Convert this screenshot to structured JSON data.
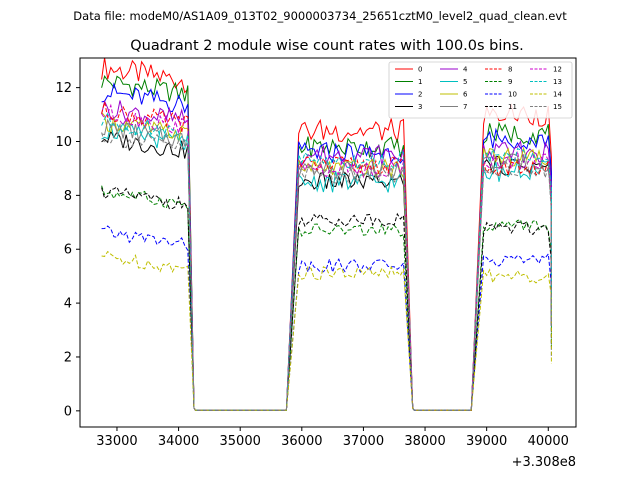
{
  "chart_data": {
    "type": "line",
    "suptitle": "Data file: modeM0/AS1A09_013T02_9000003734_25651cztM0_level2_quad_clean.evt",
    "title": "Quadrant 2 module wise count rates with 100.0s bins.",
    "xlabel": "",
    "ylabel": "",
    "x_offset_label": "+3.308e8",
    "xlim": [
      32400,
      40450
    ],
    "ylim": [
      -0.6,
      13.1
    ],
    "xticks": [
      33000,
      34000,
      35000,
      36000,
      37000,
      38000,
      39000,
      40000
    ],
    "yticks": [
      0,
      2,
      4,
      6,
      8,
      10,
      12
    ],
    "legend_loc": "upper right",
    "legend_ncol": 4,
    "segments": [
      {
        "start": 32750,
        "end": 34150,
        "drop_end": 34250,
        "gap_start": 34275,
        "gap_end": 35750,
        "rise_to": 35950
      },
      {
        "start": 35950,
        "end": 37650,
        "drop_end": 37800,
        "gap_start": 37825,
        "gap_end": 38750,
        "rise_to": 38950
      },
      {
        "start": 38950,
        "end": 40050,
        "final_end": 40050
      }
    ],
    "series": [
      {
        "name": "0",
        "color": "#ff0000",
        "dash": "solid",
        "levels": [
          12.5,
          10.4,
          11.0
        ],
        "amplitude": 0.45
      },
      {
        "name": "1",
        "color": "#008000",
        "dash": "solid",
        "levels": [
          12.0,
          9.8,
          10.3
        ],
        "amplitude": 0.4
      },
      {
        "name": "2",
        "color": "#0000ff",
        "dash": "solid",
        "levels": [
          11.6,
          9.6,
          10.1
        ],
        "amplitude": 0.4
      },
      {
        "name": "3",
        "color": "#000000",
        "dash": "solid",
        "levels": [
          9.9,
          8.5,
          9.1
        ],
        "amplitude": 0.35
      },
      {
        "name": "4",
        "color": "#9900cc",
        "dash": "solid",
        "levels": [
          11.0,
          9.5,
          9.6
        ],
        "amplitude": 0.4
      },
      {
        "name": "5",
        "color": "#00bfbf",
        "dash": "solid",
        "levels": [
          10.2,
          8.5,
          8.9
        ],
        "amplitude": 0.4
      },
      {
        "name": "6",
        "color": "#bfbf00",
        "dash": "solid",
        "levels": [
          10.5,
          9.0,
          9.4
        ],
        "amplitude": 0.35
      },
      {
        "name": "7",
        "color": "#808080",
        "dash": "solid",
        "levels": [
          10.3,
          8.9,
          9.2
        ],
        "amplitude": 0.35
      },
      {
        "name": "8",
        "color": "#ff0000",
        "dash": "dashed",
        "levels": [
          10.9,
          9.1,
          9.0
        ],
        "amplitude": 0.35
      },
      {
        "name": "9",
        "color": "#008000",
        "dash": "dashed",
        "levels": [
          7.9,
          6.7,
          6.9
        ],
        "amplitude": 0.25
      },
      {
        "name": "10",
        "color": "#0000ff",
        "dash": "dashed",
        "levels": [
          6.4,
          5.4,
          5.6
        ],
        "amplitude": 0.25
      },
      {
        "name": "11",
        "color": "#000000",
        "dash": "dashed",
        "levels": [
          7.9,
          7.1,
          6.8
        ],
        "amplitude": 0.25
      },
      {
        "name": "12",
        "color": "#cc00cc",
        "dash": "dashed",
        "levels": [
          10.8,
          9.0,
          9.3
        ],
        "amplitude": 0.35
      },
      {
        "name": "13",
        "color": "#00bfbf",
        "dash": "dashed",
        "levels": [
          10.5,
          9.3,
          9.5
        ],
        "amplitude": 0.35
      },
      {
        "name": "14",
        "color": "#bfbf00",
        "dash": "dashed",
        "levels": [
          5.5,
          5.1,
          5.0
        ],
        "amplitude": 0.25
      },
      {
        "name": "15",
        "color": "#808080",
        "dash": "dashed",
        "levels": [
          10.0,
          8.8,
          9.0
        ],
        "amplitude": 0.35
      }
    ]
  }
}
